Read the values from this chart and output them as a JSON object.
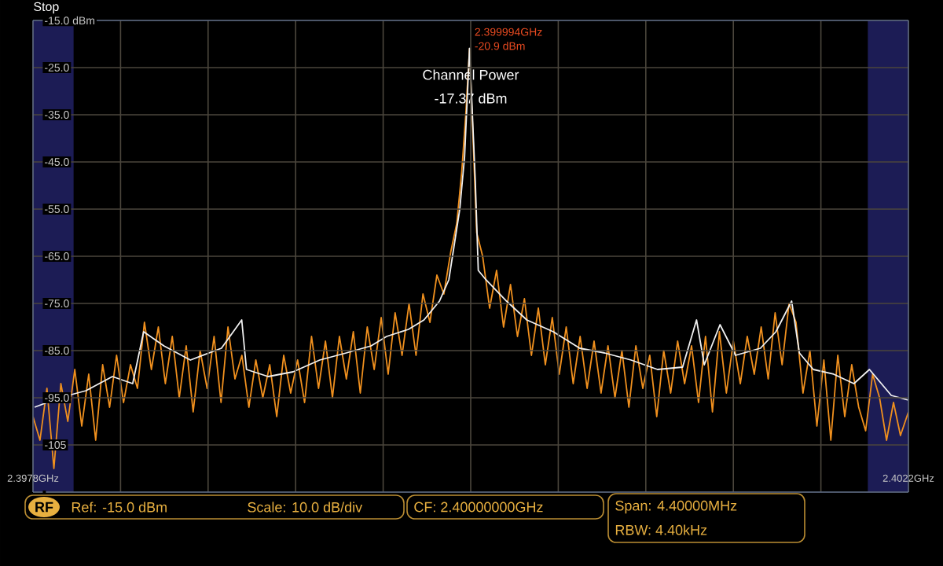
{
  "chart_data": {
    "type": "line",
    "xlim": [
      2.3978,
      2.4022
    ],
    "ylim": [
      -115,
      -15
    ],
    "xticks": [
      {
        "value": 2.3978,
        "label": "2.3978GHz"
      },
      {
        "value": 2.39824,
        "label": null
      },
      {
        "value": 2.39868,
        "label": null
      },
      {
        "value": 2.39912,
        "label": null
      },
      {
        "value": 2.39956,
        "label": null
      },
      {
        "value": 2.4,
        "label": null
      },
      {
        "value": 2.40044,
        "label": null
      },
      {
        "value": 2.40088,
        "label": null
      },
      {
        "value": 2.40132,
        "label": null
      },
      {
        "value": 2.40176,
        "label": null
      },
      {
        "value": 2.4022,
        "label": "2.4022GHz"
      }
    ],
    "yticks": [
      {
        "value": -15,
        "label": "-15.0 dBm"
      },
      {
        "value": -25,
        "label": "-25.0"
      },
      {
        "value": -35,
        "label": "-35.0"
      },
      {
        "value": -45,
        "label": "-45.0"
      },
      {
        "value": -55,
        "label": "-55.0"
      },
      {
        "value": -65,
        "label": "-65.0"
      },
      {
        "value": -75,
        "label": "-75.0"
      },
      {
        "value": -85,
        "label": "-85.0"
      },
      {
        "value": -95,
        "label": "-95.0"
      },
      {
        "value": -105,
        "label": "-105"
      },
      {
        "value": -115,
        "label": null
      }
    ],
    "grid": true,
    "marker": "none",
    "line_style": "solid",
    "bands": [
      {
        "axis": "x",
        "from": 2.3978,
        "to": 2.398004,
        "color": "#1c1c55"
      },
      {
        "axis": "x",
        "from": 2.401996,
        "to": 2.4022,
        "color": "#1c1c55"
      }
    ],
    "series": [
      {
        "color": "#f0901e",
        "x": [
          2.3978,
          2.397835,
          2.39787,
          2.397905,
          2.39794,
          2.397975,
          2.39801,
          2.398045,
          2.39808,
          2.398115,
          2.39815,
          2.398185,
          2.39822,
          2.398255,
          2.39829,
          2.398325,
          2.39836,
          2.398395,
          2.39843,
          2.398465,
          2.3985,
          2.398535,
          2.39857,
          2.398605,
          2.39864,
          2.398675,
          2.39871,
          2.398745,
          2.39878,
          2.398815,
          2.39885,
          2.398885,
          2.39892,
          2.398955,
          2.39899,
          2.399025,
          2.39906,
          2.399095,
          2.39913,
          2.399165,
          2.3992,
          2.399235,
          2.39927,
          2.399305,
          2.39934,
          2.399375,
          2.39941,
          2.399445,
          2.39948,
          2.399515,
          2.39955,
          2.399585,
          2.39962,
          2.399655,
          2.39969,
          2.399725,
          2.39976,
          2.399795,
          2.39983,
          2.399865,
          2.3999,
          2.39993,
          2.399955,
          2.399975,
          2.399994,
          2.40001,
          2.40003,
          2.40006,
          2.400095,
          2.40013,
          2.400165,
          2.4002,
          2.400235,
          2.40027,
          2.400305,
          2.40034,
          2.400375,
          2.40041,
          2.400445,
          2.40048,
          2.400515,
          2.40055,
          2.400585,
          2.40062,
          2.400655,
          2.40069,
          2.400725,
          2.40076,
          2.400795,
          2.40083,
          2.400865,
          2.4009,
          2.400935,
          2.40097,
          2.401005,
          2.40104,
          2.401075,
          2.40111,
          2.401145,
          2.40118,
          2.401215,
          2.40125,
          2.401285,
          2.40132,
          2.401355,
          2.40139,
          2.401425,
          2.40146,
          2.401495,
          2.40153,
          2.401565,
          2.4016,
          2.401635,
          2.40167,
          2.401705,
          2.40174,
          2.401775,
          2.40181,
          2.401845,
          2.40188,
          2.401915,
          2.40195,
          2.401985,
          2.40202,
          2.402055,
          2.40209,
          2.402125,
          2.40216,
          2.4022
        ],
        "values": [
          -99,
          -104,
          -93,
          -110,
          -92,
          -100,
          -89,
          -101,
          -90,
          -104,
          -88,
          -97,
          -86,
          -96,
          -88,
          -93,
          -79,
          -89,
          -80,
          -92,
          -82,
          -95,
          -84,
          -98,
          -85,
          -93,
          -82,
          -96,
          -80,
          -91,
          -86,
          -97,
          -87,
          -95,
          -88,
          -99,
          -86,
          -94,
          -87,
          -96,
          -82,
          -93,
          -83,
          -95,
          -82,
          -91,
          -81,
          -94,
          -80,
          -89,
          -78,
          -90,
          -77,
          -86,
          -75,
          -86,
          -73,
          -79,
          -69,
          -73,
          -64,
          -58,
          -47,
          -35,
          -21,
          -38,
          -60,
          -65,
          -76,
          -68,
          -80,
          -71,
          -82,
          -74,
          -86,
          -76,
          -88,
          -78,
          -90,
          -80,
          -92,
          -82,
          -93,
          -83,
          -94,
          -84,
          -95,
          -85,
          -97,
          -84,
          -93,
          -86,
          -99,
          -85,
          -94,
          -83,
          -92,
          -84,
          -96,
          -82,
          -98,
          -81,
          -94,
          -83,
          -92,
          -82,
          -90,
          -80,
          -91,
          -77,
          -88,
          -75,
          -79,
          -94,
          -85,
          -101,
          -87,
          -104,
          -86,
          -99,
          -88,
          -97,
          -102,
          -90,
          -95,
          -104,
          -96,
          -103,
          -98
        ]
      },
      {
        "color": "#f0f0f0",
        "x": [
          2.397808,
          2.397933,
          2.398066,
          2.398199,
          2.398301,
          2.398356,
          2.398458,
          2.398591,
          2.398747,
          2.398849,
          2.398873,
          2.398982,
          2.399107,
          2.399241,
          2.399374,
          2.399499,
          2.399577,
          2.399687,
          2.399765,
          2.399843,
          2.39989,
          2.399945,
          2.399969,
          2.399994,
          2.400023,
          2.400038,
          2.400077,
          2.40018,
          2.400282,
          2.400415,
          2.400548,
          2.400673,
          2.400806,
          2.400939,
          2.401065,
          2.401135,
          2.401174,
          2.401253,
          2.401331,
          2.401456,
          2.401534,
          2.401613,
          2.401652,
          2.401722,
          2.401824,
          2.401926,
          2.402004,
          2.402114,
          2.4022
        ],
        "values": [
          -97,
          -95,
          -93.5,
          -90.5,
          -92,
          -81,
          -84,
          -87,
          -84.5,
          -78.5,
          -89,
          -90.5,
          -89.5,
          -87,
          -85.5,
          -84,
          -82,
          -80.5,
          -78.5,
          -74.5,
          -70,
          -55,
          -44,
          -20.9,
          -49,
          -68,
          -70,
          -74.5,
          -78.5,
          -81,
          -84.5,
          -85.5,
          -87,
          -89,
          -88.5,
          -78.5,
          -88,
          -79.5,
          -86,
          -84.5,
          -81,
          -74.5,
          -85.5,
          -89,
          -90,
          -92,
          -89,
          -94.5,
          -95.5
        ]
      }
    ],
    "annotations": [
      "Stop",
      {
        "text": "2.399994GHz",
        "x": 2.399994,
        "y": -20.9
      },
      {
        "text": "-20.9 dBm",
        "x": 2.399994,
        "y": -20.9
      },
      "Channel Power",
      "-17.37 dBm",
      "RF",
      "Ref: -15.0 dBm",
      "Scale: 10.0 dB/div",
      "CF: 2.40000000GHz",
      "Span: 4.40000MHz",
      "RBW: 4.40kHz"
    ]
  }
}
